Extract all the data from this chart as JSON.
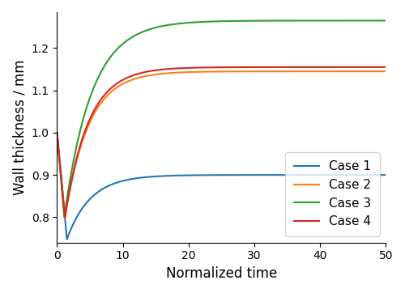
{
  "title": "",
  "xlabel": "Normalized time",
  "ylabel": "Wall thickness / mm",
  "xlim": [
    0,
    50
  ],
  "ylim": [
    0.74,
    1.285
  ],
  "yticks": [
    0.8,
    0.9,
    1.0,
    1.1,
    1.2
  ],
  "xticks": [
    0,
    10,
    20,
    30,
    40,
    50
  ],
  "cases": [
    {
      "label": "Case 1",
      "color": "#1f77b4",
      "t0": 0.0,
      "v0": 1.0,
      "dip_time": 1.5,
      "dip_val": 0.748,
      "asymptote": 0.9,
      "drop_k": 8.0,
      "rise_k": 0.28
    },
    {
      "label": "Case 2",
      "color": "#ff7f0e",
      "t0": 0.0,
      "v0": 1.0,
      "dip_time": 1.2,
      "dip_val": 0.797,
      "asymptote": 1.145,
      "drop_k": 10.0,
      "rise_k": 0.28
    },
    {
      "label": "Case 3",
      "color": "#2ca02c",
      "t0": 0.0,
      "v0": 1.0,
      "dip_time": 1.1,
      "dip_val": 0.8,
      "asymptote": 1.265,
      "drop_k": 10.0,
      "rise_k": 0.24
    },
    {
      "label": "Case 4",
      "color": "#d62728",
      "t0": 0.0,
      "v0": 1.0,
      "dip_time": 1.2,
      "dip_val": 0.8,
      "asymptote": 1.155,
      "drop_k": 10.0,
      "rise_k": 0.28
    }
  ],
  "legend_loc": "lower right",
  "figsize": [
    5.0,
    3.62
  ],
  "dpi": 100
}
